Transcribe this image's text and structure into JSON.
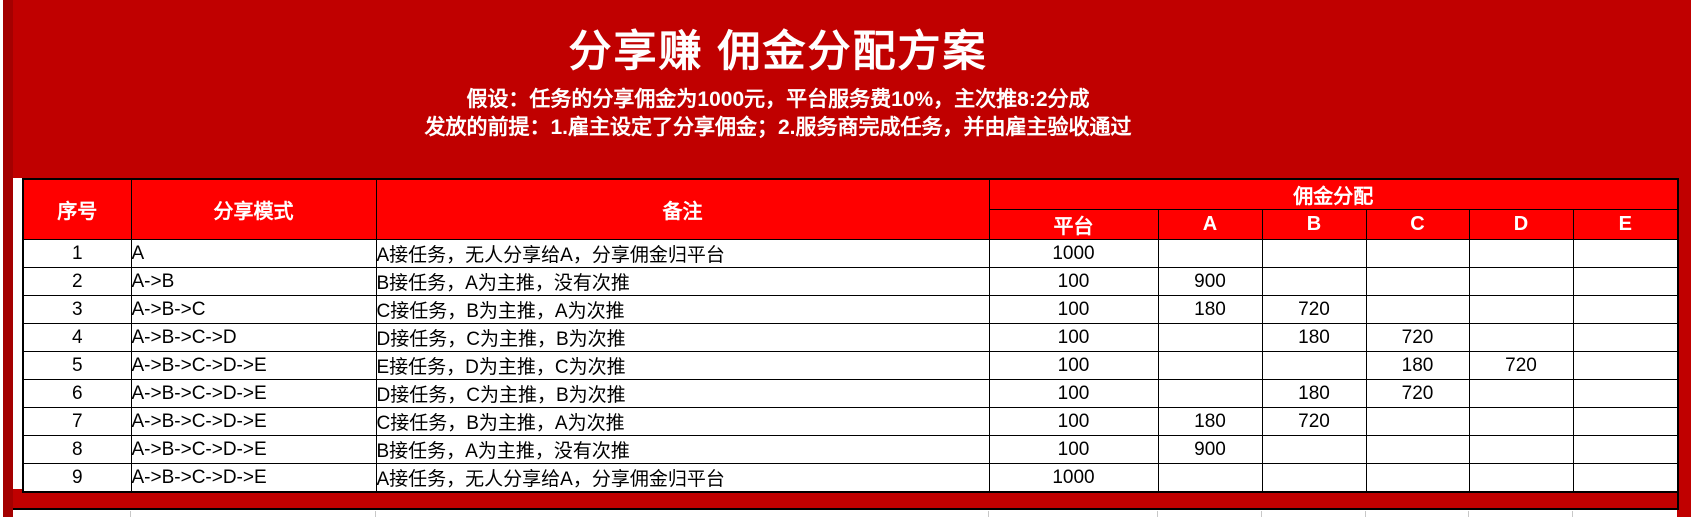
{
  "banner": {
    "title": "分享赚 佣金分配方案",
    "subtitle_line1": "假设：任务的分享佣金为1000元，平台服务费10%，主次推8:2分成",
    "subtitle_line2": "发放的前提：1.雇主设定了分享佣金；2.服务商完成任务，并由雇主验收通过"
  },
  "colors": {
    "banner_red": "#C00000",
    "header_cell_red": "#FF0000",
    "left_edge_dark_red": "#A40000",
    "table_border": "#000000",
    "header_text": "#FFFFFF",
    "body_text": "#000000",
    "grid_tick": "#C8C8C8"
  },
  "table": {
    "headers": {
      "index": "序号",
      "mode": "分享模式",
      "remark": "备注",
      "commission_group": "佣金分配",
      "commission_cols": [
        "平台",
        "A",
        "B",
        "C",
        "D",
        "E"
      ]
    },
    "rows": [
      {
        "index": "1",
        "mode": "A",
        "remark": "A接任务，无人分享给A，分享佣金归平台",
        "values": [
          "1000",
          "",
          "",
          "",
          "",
          ""
        ]
      },
      {
        "index": "2",
        "mode": "A->B",
        "remark": "B接任务，A为主推，没有次推",
        "values": [
          "100",
          "900",
          "",
          "",
          "",
          ""
        ]
      },
      {
        "index": "3",
        "mode": "A->B->C",
        "remark": "C接任务，B为主推，A为次推",
        "values": [
          "100",
          "180",
          "720",
          "",
          "",
          ""
        ]
      },
      {
        "index": "4",
        "mode": "A->B->C->D",
        "remark": "D接任务，C为主推，B为次推",
        "values": [
          "100",
          "",
          "180",
          "720",
          "",
          ""
        ]
      },
      {
        "index": "5",
        "mode": "A->B->C->D->E",
        "remark": "E接任务，D为主推，C为次推",
        "values": [
          "100",
          "",
          "",
          "180",
          "720",
          ""
        ]
      },
      {
        "index": "6",
        "mode": "A->B->C->D->E",
        "remark": "D接任务，C为主推，B为次推",
        "values": [
          "100",
          "",
          "180",
          "720",
          "",
          ""
        ]
      },
      {
        "index": "7",
        "mode": "A->B->C->D->E",
        "remark": "C接任务，B为主推，A为次推",
        "values": [
          "100",
          "180",
          "720",
          "",
          "",
          ""
        ]
      },
      {
        "index": "8",
        "mode": "A->B->C->D->E",
        "remark": "B接任务，A为主推，没有次推",
        "values": [
          "100",
          "900",
          "",
          "",
          "",
          ""
        ]
      },
      {
        "index": "9",
        "mode": "A->B->C->D->E",
        "remark": "A接任务，无人分享给A，分享佣金归平台",
        "values": [
          "1000",
          "",
          "",
          "",
          "",
          ""
        ]
      }
    ]
  }
}
